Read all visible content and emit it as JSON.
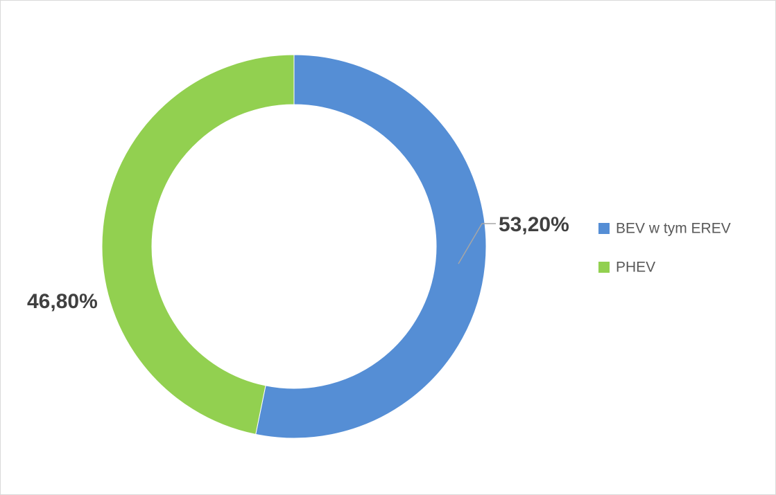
{
  "chart_data": {
    "type": "donut",
    "categories": [
      "BEV w tym EREV",
      "PHEV"
    ],
    "values": [
      53.2,
      46.8
    ],
    "value_labels": [
      "53,20%",
      "46,80%"
    ],
    "colors": [
      "#558ed5",
      "#92d050"
    ],
    "legend": "right"
  }
}
